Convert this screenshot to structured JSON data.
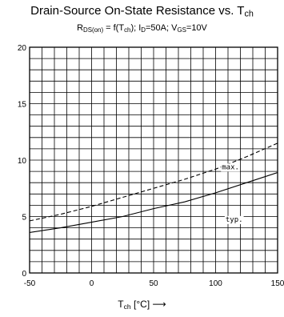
{
  "title": {
    "main": "Drain-Source On-State Resistance vs. T",
    "main_sub": "ch"
  },
  "subtitle": {
    "p1": "R",
    "s1": "DS(on)",
    "p2": " = f(T",
    "s2": "ch",
    "p3": "); I",
    "s3": "D",
    "p4": "=50A; V",
    "s4": "GS",
    "p5": "=10V"
  },
  "xlabel": {
    "p1": "T",
    "s1": "ch",
    "p2": " [°C]  ⟶"
  },
  "chart_data": {
    "type": "line",
    "title": "Drain-Source On-State Resistance vs. Tch",
    "subtitle": "RDS(on) = f(Tch); ID=50A; VGS=10V",
    "xlabel": "Tch [°C]",
    "ylabel": "",
    "xlim": [
      -50,
      150
    ],
    "ylim": [
      0,
      20
    ],
    "xticks": [
      -50,
      0,
      50,
      100,
      150
    ],
    "yticks": [
      0,
      5,
      10,
      15,
      20
    ],
    "grid": true,
    "series": [
      {
        "name": "max.",
        "style": "dashed",
        "x": [
          -55,
          -25,
          0,
          25,
          50,
          75,
          100,
          125,
          150
        ],
        "y": [
          4.5,
          5.2,
          5.9,
          6.7,
          7.5,
          8.3,
          9.2,
          10.3,
          11.5
        ]
      },
      {
        "name": "typ.",
        "style": "solid",
        "x": [
          -55,
          -25,
          0,
          25,
          50,
          75,
          100,
          125,
          150
        ],
        "y": [
          3.5,
          4.0,
          4.5,
          5.0,
          5.7,
          6.3,
          7.1,
          8.0,
          8.9
        ]
      }
    ]
  }
}
